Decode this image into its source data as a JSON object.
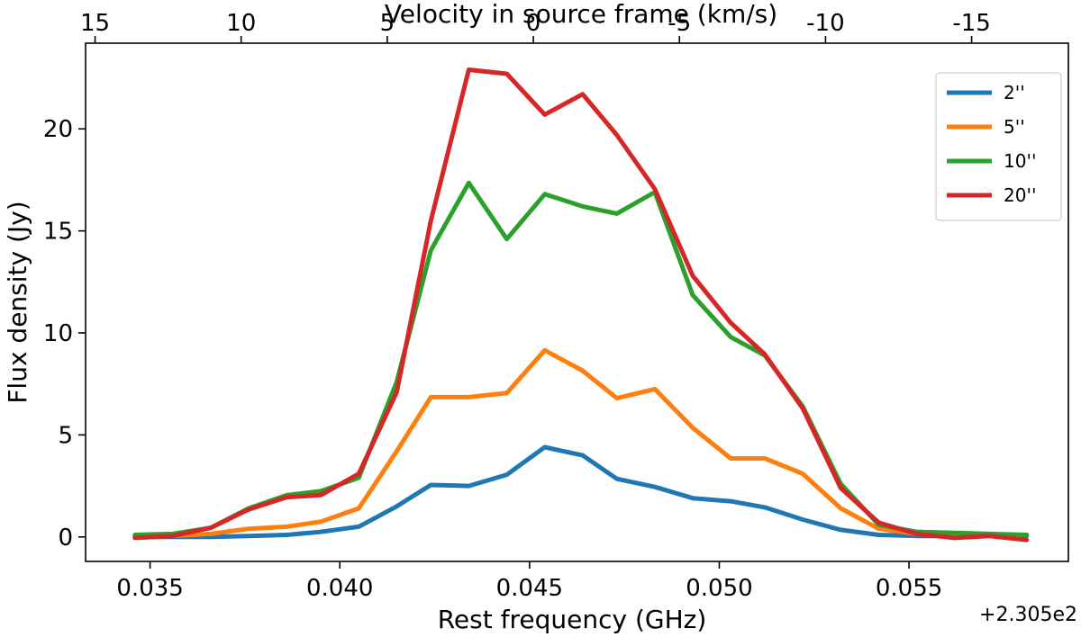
{
  "chart_data": {
    "type": "line",
    "xlabel": "Rest frequency (GHz)",
    "x_offset_label": "+2.305e2",
    "ylabel": "Flux density (Jy)",
    "top_xlabel": "Velocity in source frame (km/s)",
    "xlim": [
      0.0333,
      0.0592
    ],
    "ylim": [
      -1.2,
      24.2
    ],
    "xticks": [
      0.035,
      0.04,
      0.045,
      0.05,
      0.055
    ],
    "xtick_labels": [
      "0.035",
      "0.040",
      "0.045",
      "0.050",
      "0.055"
    ],
    "yticks": [
      0,
      5,
      10,
      15,
      20
    ],
    "ytick_labels": [
      "0",
      "5",
      "10",
      "15",
      "20"
    ],
    "top_ticks": [
      15,
      10,
      5,
      0,
      -5,
      -10,
      -15
    ],
    "top_tick_labels": [
      "15",
      "10",
      "5",
      "0",
      "-5",
      "-10",
      "-15"
    ],
    "velocity_reference_x": 0.0451,
    "velocity_scale_khz_per_kms": 0.77,
    "legend_position": "top-right",
    "x": [
      0.0346,
      0.0356,
      0.0366,
      0.0376,
      0.0386,
      0.0395,
      0.0405,
      0.0415,
      0.0424,
      0.0434,
      0.0444,
      0.0454,
      0.0464,
      0.0473,
      0.0483,
      0.0493,
      0.0503,
      0.0512,
      0.0522,
      0.0532,
      0.0542,
      0.0552,
      0.0562,
      0.0571,
      0.0581
    ],
    "series": [
      {
        "name": "2''",
        "color": "#1f77b4",
        "values": [
          0.0,
          0.0,
          0.0,
          0.05,
          0.1,
          0.25,
          0.5,
          1.5,
          2.55,
          2.5,
          3.05,
          4.4,
          4.0,
          2.85,
          2.45,
          1.9,
          1.75,
          1.45,
          0.85,
          0.35,
          0.1,
          0.05,
          0.05,
          0.05,
          0.05
        ]
      },
      {
        "name": "5''",
        "color": "#ff7f0e",
        "values": [
          0.0,
          0.05,
          0.15,
          0.4,
          0.5,
          0.75,
          1.4,
          4.2,
          6.85,
          6.85,
          7.05,
          9.15,
          8.15,
          6.8,
          7.25,
          5.35,
          3.85,
          3.85,
          3.1,
          1.4,
          0.4,
          0.15,
          0.1,
          0.1,
          0.1
        ]
      },
      {
        "name": "10''",
        "color": "#2ca02c",
        "values": [
          0.1,
          0.15,
          0.45,
          1.4,
          2.05,
          2.25,
          2.9,
          7.6,
          14.05,
          17.35,
          14.6,
          16.8,
          16.2,
          15.85,
          16.9,
          11.85,
          9.8,
          8.9,
          6.4,
          2.6,
          0.6,
          0.25,
          0.2,
          0.15,
          0.1
        ]
      },
      {
        "name": "20''",
        "color": "#d62728",
        "values": [
          -0.05,
          0.05,
          0.45,
          1.35,
          1.95,
          2.05,
          3.1,
          7.1,
          15.5,
          22.9,
          22.7,
          20.7,
          21.7,
          19.7,
          17.05,
          12.8,
          10.5,
          8.95,
          6.3,
          2.4,
          0.7,
          0.15,
          -0.05,
          0.05,
          -0.15
        ]
      }
    ]
  }
}
